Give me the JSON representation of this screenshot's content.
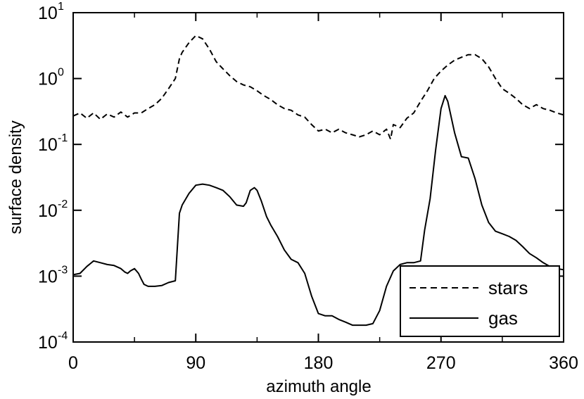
{
  "chart_data": {
    "type": "line",
    "title": "",
    "xlabel": "azimuth angle",
    "ylabel": "surface density",
    "xlim": [
      0,
      360
    ],
    "ylim": [
      0.0001,
      10
    ],
    "yscale": "log",
    "grid": false,
    "legend_position": "bottom-right",
    "x_ticks": [
      "0",
      "90",
      "180",
      "270",
      "360"
    ],
    "y_ticks": [
      {
        "base": "10",
        "exp": "1"
      },
      {
        "base": "10",
        "exp": "0"
      },
      {
        "base": "10",
        "exp": "-1"
      },
      {
        "base": "10",
        "exp": "-2"
      },
      {
        "base": "10",
        "exp": "-3"
      },
      {
        "base": "10",
        "exp": "-4"
      }
    ],
    "series": [
      {
        "name": "stars",
        "style": "dashed",
        "color": "#000000",
        "x": [
          0,
          5,
          10,
          15,
          20,
          25,
          30,
          35,
          40,
          45,
          50,
          55,
          60,
          65,
          70,
          75,
          78,
          80,
          85,
          90,
          95,
          100,
          105,
          110,
          115,
          120,
          125,
          130,
          135,
          140,
          145,
          150,
          155,
          160,
          165,
          170,
          175,
          180,
          185,
          190,
          195,
          200,
          205,
          210,
          215,
          220,
          225,
          230,
          233,
          235,
          240,
          245,
          250,
          255,
          260,
          265,
          270,
          275,
          280,
          285,
          290,
          295,
          300,
          305,
          310,
          315,
          320,
          325,
          330,
          335,
          340,
          345,
          350,
          355,
          360
        ],
        "y": [
          0.27,
          0.3,
          0.25,
          0.3,
          0.24,
          0.29,
          0.26,
          0.31,
          0.26,
          0.3,
          0.3,
          0.35,
          0.4,
          0.5,
          0.7,
          1.0,
          2.0,
          2.5,
          3.5,
          4.5,
          4.0,
          2.8,
          1.8,
          1.4,
          1.1,
          0.9,
          0.8,
          0.75,
          0.65,
          0.55,
          0.48,
          0.4,
          0.35,
          0.33,
          0.28,
          0.26,
          0.2,
          0.16,
          0.17,
          0.15,
          0.17,
          0.15,
          0.14,
          0.13,
          0.14,
          0.16,
          0.14,
          0.17,
          0.12,
          0.2,
          0.18,
          0.25,
          0.3,
          0.45,
          0.65,
          1.0,
          1.3,
          1.6,
          1.9,
          2.1,
          2.3,
          2.3,
          2.0,
          1.5,
          1.0,
          0.7,
          0.6,
          0.5,
          0.4,
          0.35,
          0.4,
          0.35,
          0.33,
          0.3,
          0.28
        ]
      },
      {
        "name": "gas",
        "style": "solid",
        "color": "#000000",
        "x": [
          0,
          5,
          10,
          15,
          20,
          25,
          30,
          35,
          38,
          40,
          42,
          45,
          48,
          50,
          52,
          55,
          60,
          65,
          70,
          75,
          78,
          80,
          85,
          90,
          95,
          100,
          105,
          110,
          115,
          120,
          125,
          127,
          130,
          133,
          135,
          138,
          142,
          145,
          150,
          155,
          160,
          165,
          170,
          175,
          180,
          185,
          190,
          195,
          200,
          205,
          210,
          215,
          220,
          225,
          230,
          235,
          240,
          245,
          250,
          255,
          258,
          262,
          266,
          270,
          273,
          275,
          280,
          285,
          290,
          295,
          300,
          305,
          310,
          315,
          320,
          325,
          330,
          335,
          340,
          345,
          350,
          355,
          360
        ],
        "y": [
          0.00105,
          0.0011,
          0.0014,
          0.0017,
          0.0016,
          0.0015,
          0.00145,
          0.0013,
          0.00115,
          0.0011,
          0.0012,
          0.0013,
          0.0011,
          0.0009,
          0.00075,
          0.0007,
          0.0007,
          0.00072,
          0.0008,
          0.00085,
          0.009,
          0.012,
          0.018,
          0.024,
          0.025,
          0.024,
          0.022,
          0.02,
          0.016,
          0.012,
          0.0115,
          0.013,
          0.02,
          0.022,
          0.02,
          0.014,
          0.008,
          0.006,
          0.004,
          0.0025,
          0.0018,
          0.0016,
          0.0011,
          0.0005,
          0.00027,
          0.00025,
          0.00025,
          0.00022,
          0.0002,
          0.00018,
          0.00018,
          0.00018,
          0.00019,
          0.0003,
          0.0007,
          0.0012,
          0.0015,
          0.0016,
          0.0016,
          0.0017,
          0.005,
          0.015,
          0.08,
          0.35,
          0.55,
          0.45,
          0.15,
          0.065,
          0.062,
          0.03,
          0.012,
          0.0065,
          0.0048,
          0.0044,
          0.004,
          0.0035,
          0.0028,
          0.0022,
          0.0019,
          0.0016,
          0.0014,
          0.0013,
          0.00125
        ]
      }
    ]
  }
}
